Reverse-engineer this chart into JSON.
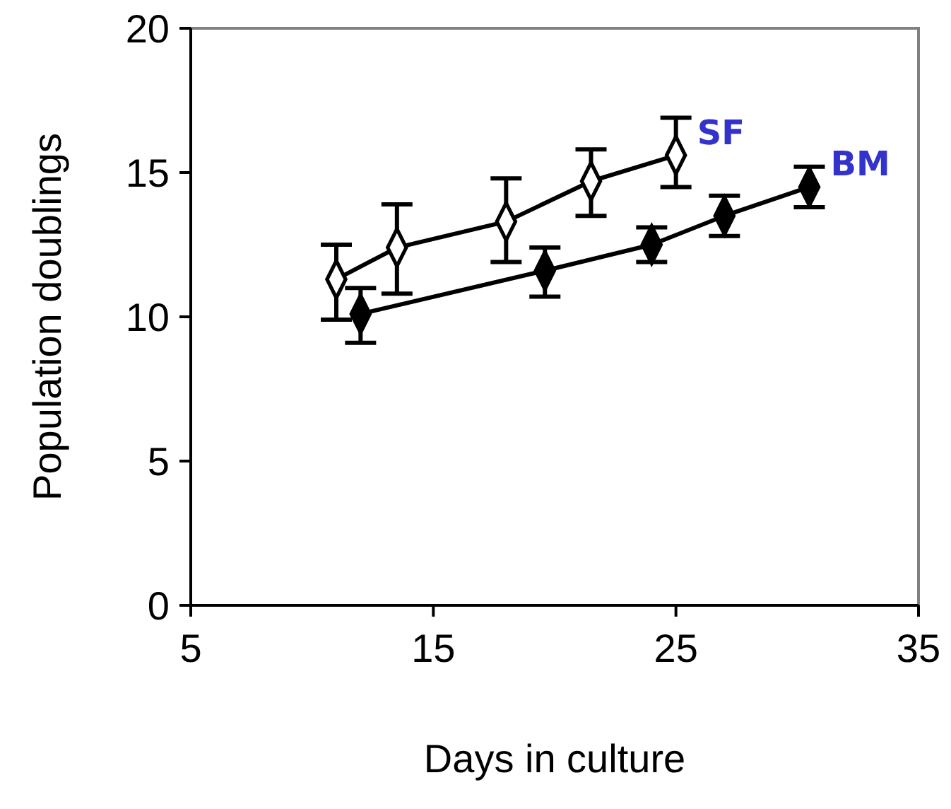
{
  "chart_data": {
    "type": "line",
    "xlabel": "Days in culture",
    "ylabel": "Population doublings",
    "xlim": [
      5,
      35
    ],
    "xticks": [
      5,
      15,
      25,
      35
    ],
    "ylim": [
      0,
      20
    ],
    "yticks": [
      0,
      5,
      10,
      15,
      20
    ],
    "grid": false,
    "marker": "diamond",
    "line_style": "solid",
    "series": [
      {
        "name": "SF",
        "color": "#ffffff",
        "x": [
          11,
          13.5,
          18,
          21.5,
          25
        ],
        "values": [
          11.3,
          12.4,
          13.3,
          14.7,
          15.6
        ],
        "errors": [
          [
            9.9,
            12.5
          ],
          [
            10.8,
            13.9
          ],
          [
            11.9,
            14.8
          ],
          [
            13.5,
            15.8
          ],
          [
            14.5,
            16.9
          ]
        ]
      },
      {
        "name": "BM",
        "color": "#000000",
        "x": [
          12,
          19.6,
          24,
          27,
          30.5
        ],
        "values": [
          10.1,
          11.6,
          12.5,
          13.5,
          14.5
        ],
        "errors": [
          [
            9.1,
            11
          ],
          [
            10.7,
            12.4
          ],
          [
            11.9,
            13.1
          ],
          [
            12.8,
            14.2
          ],
          [
            13.8,
            15.2
          ]
        ]
      }
    ]
  }
}
